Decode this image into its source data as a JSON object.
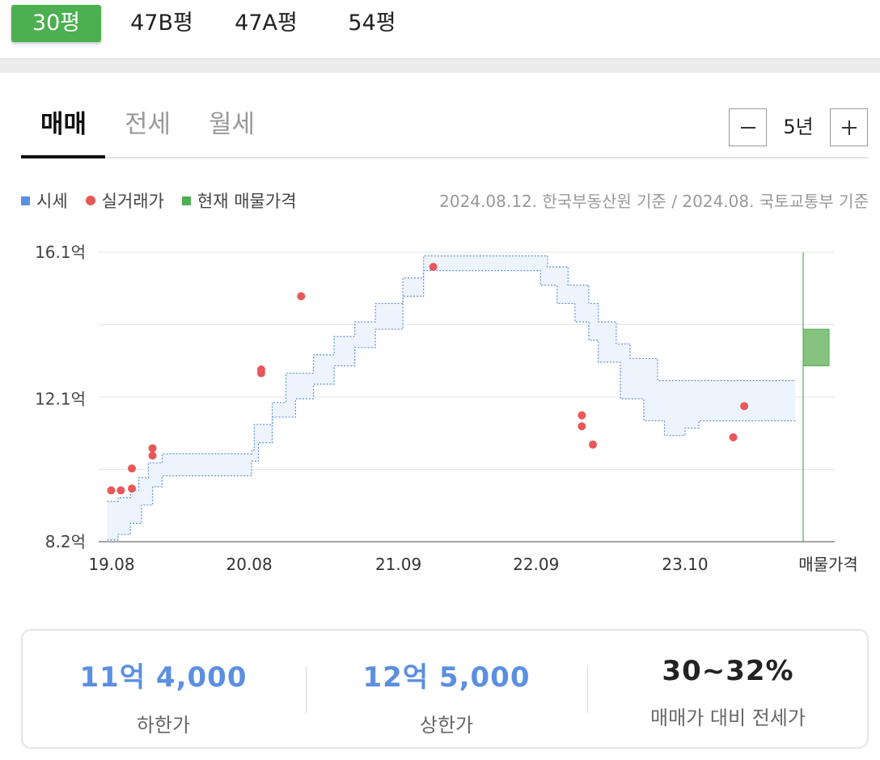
{
  "size_tabs": [
    "30평",
    "47B평",
    "47A평",
    "54평"
  ],
  "trade_tabs": [
    "매매",
    "전세",
    "월세"
  ],
  "period": {
    "label": "5년"
  },
  "legend": {
    "items": [
      {
        "label": "시세",
        "color": "#5b8fe0"
      },
      {
        "label": "실거래가",
        "color": "#e85858"
      },
      {
        "label": "현재 매물가격",
        "color": "#4caf50"
      }
    ],
    "note": "2024.08.12. 한국부동산원 기준 / 2024.08. 국토교통부 기준"
  },
  "chart_data": {
    "type": "scatter",
    "unit": "억",
    "y_ticks": [
      {
        "label": "16.1억",
        "value": 16.1
      },
      {
        "label": "12.1억",
        "value": 12.1
      },
      {
        "label": "8.2억",
        "value": 8.2
      }
    ],
    "x_ticks": [
      "19.08",
      "20.08",
      "21.09",
      "22.09",
      "23.10",
      "매물가격"
    ],
    "x_tick_dates": [
      2019.583,
      2020.583,
      2021.667,
      2022.667,
      2023.75
    ],
    "market_band": {
      "upper": [
        [
          2019.55,
          9.3
        ],
        [
          2019.63,
          9.4
        ],
        [
          2019.72,
          9.6
        ],
        [
          2019.78,
          9.95
        ],
        [
          2019.85,
          10.35
        ],
        [
          2019.95,
          10.6
        ],
        [
          2020.5,
          10.6
        ],
        [
          2020.6,
          10.7
        ],
        [
          2020.62,
          11.4
        ],
        [
          2020.75,
          12.0
        ],
        [
          2020.85,
          12.8
        ],
        [
          2021.05,
          13.3
        ],
        [
          2021.2,
          13.8
        ],
        [
          2021.35,
          14.2
        ],
        [
          2021.5,
          14.7
        ],
        [
          2021.7,
          15.4
        ],
        [
          2021.85,
          16.0
        ],
        [
          2022.6,
          16.0
        ],
        [
          2022.75,
          15.7
        ],
        [
          2022.9,
          15.2
        ],
        [
          2023.05,
          14.7
        ],
        [
          2023.12,
          14.2
        ],
        [
          2023.25,
          13.6
        ],
        [
          2023.35,
          13.2
        ],
        [
          2023.55,
          12.6
        ],
        [
          2024.55,
          12.6
        ]
      ],
      "lower": [
        [
          2019.55,
          8.25
        ],
        [
          2019.63,
          8.4
        ],
        [
          2019.72,
          8.7
        ],
        [
          2019.8,
          9.2
        ],
        [
          2019.88,
          9.7
        ],
        [
          2019.95,
          10.0
        ],
        [
          2020.5,
          10.0
        ],
        [
          2020.6,
          10.4
        ],
        [
          2020.65,
          10.9
        ],
        [
          2020.75,
          11.6
        ],
        [
          2020.92,
          12.1
        ],
        [
          2021.05,
          12.5
        ],
        [
          2021.2,
          13.0
        ],
        [
          2021.35,
          13.5
        ],
        [
          2021.5,
          14.0
        ],
        [
          2021.7,
          14.9
        ],
        [
          2021.85,
          15.6
        ],
        [
          2022.55,
          15.6
        ],
        [
          2022.7,
          15.2
        ],
        [
          2022.82,
          14.7
        ],
        [
          2022.95,
          14.2
        ],
        [
          2023.05,
          13.7
        ],
        [
          2023.12,
          13.1
        ],
        [
          2023.28,
          12.1
        ],
        [
          2023.45,
          11.5
        ],
        [
          2023.6,
          11.1
        ],
        [
          2023.75,
          11.3
        ],
        [
          2023.85,
          11.5
        ],
        [
          2024.55,
          11.5
        ]
      ]
    },
    "transactions": [
      [
        2019.58,
        9.6
      ],
      [
        2019.65,
        9.6
      ],
      [
        2019.73,
        10.2
      ],
      [
        2019.73,
        9.65
      ],
      [
        2019.88,
        10.75
      ],
      [
        2019.88,
        10.55
      ],
      [
        2020.67,
        12.9
      ],
      [
        2020.67,
        12.8
      ],
      [
        2020.96,
        14.9
      ],
      [
        2021.92,
        15.7
      ],
      [
        2023.0,
        11.65
      ],
      [
        2023.0,
        11.35
      ],
      [
        2023.08,
        10.85
      ],
      [
        2024.1,
        11.05
      ],
      [
        2024.18,
        11.9
      ]
    ],
    "listing": {
      "low": 13.0,
      "high": 14.0
    },
    "ylim": [
      8.2,
      16.1
    ]
  },
  "summary": [
    {
      "value": "11억 4,000",
      "label": "하한가"
    },
    {
      "value": "12억 5,000",
      "label": "상한가"
    },
    {
      "value": "30~32%",
      "label": "매매가 대비 전세가"
    }
  ]
}
